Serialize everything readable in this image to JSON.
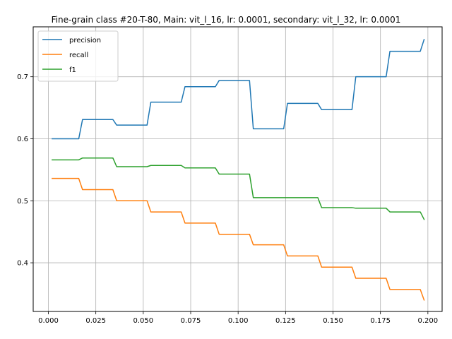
{
  "chart_data": {
    "type": "line",
    "title": "Fine-grain class #20-T-80, Main: vit_l_16, lr: 0.0001, secondary: vit_l_32, lr: 0.0001",
    "xlabel": "",
    "ylabel": "",
    "xlim": [
      -0.008,
      0.2075
    ],
    "ylim": [
      0.3215,
      0.7805
    ],
    "x_ticks": [
      0.0,
      0.025,
      0.05,
      0.075,
      0.1,
      0.125,
      0.15,
      0.175,
      0.2
    ],
    "x_tick_labels": [
      "0.000",
      "0.025",
      "0.050",
      "0.075",
      "0.100",
      "0.125",
      "0.150",
      "0.175",
      "0.200"
    ],
    "y_ticks": [
      0.4,
      0.5,
      0.6,
      0.7
    ],
    "y_tick_labels": [
      "0.4",
      "0.5",
      "0.6",
      "0.7"
    ],
    "grid": true,
    "legend_position": "upper-left",
    "series": [
      {
        "name": "precision",
        "color": "#1f77b4",
        "points": [
          [
            0.002,
            0.6
          ],
          [
            0.016,
            0.6
          ],
          [
            0.018,
            0.631
          ],
          [
            0.034,
            0.631
          ],
          [
            0.036,
            0.622
          ],
          [
            0.052,
            0.622
          ],
          [
            0.054,
            0.659
          ],
          [
            0.07,
            0.659
          ],
          [
            0.072,
            0.684
          ],
          [
            0.088,
            0.684
          ],
          [
            0.09,
            0.694
          ],
          [
            0.106,
            0.694
          ],
          [
            0.108,
            0.616
          ],
          [
            0.124,
            0.616
          ],
          [
            0.126,
            0.657
          ],
          [
            0.142,
            0.657
          ],
          [
            0.144,
            0.647
          ],
          [
            0.16,
            0.647
          ],
          [
            0.162,
            0.7
          ],
          [
            0.178,
            0.7
          ],
          [
            0.18,
            0.741
          ],
          [
            0.196,
            0.741
          ],
          [
            0.198,
            0.76
          ]
        ]
      },
      {
        "name": "recall",
        "color": "#ff7f0e",
        "points": [
          [
            0.002,
            0.536
          ],
          [
            0.016,
            0.536
          ],
          [
            0.018,
            0.518
          ],
          [
            0.034,
            0.518
          ],
          [
            0.036,
            0.5
          ],
          [
            0.052,
            0.5
          ],
          [
            0.054,
            0.482
          ],
          [
            0.07,
            0.482
          ],
          [
            0.072,
            0.464
          ],
          [
            0.088,
            0.464
          ],
          [
            0.09,
            0.446
          ],
          [
            0.106,
            0.446
          ],
          [
            0.108,
            0.429
          ],
          [
            0.124,
            0.429
          ],
          [
            0.126,
            0.411
          ],
          [
            0.142,
            0.411
          ],
          [
            0.144,
            0.393
          ],
          [
            0.16,
            0.393
          ],
          [
            0.162,
            0.375
          ],
          [
            0.178,
            0.375
          ],
          [
            0.18,
            0.357
          ],
          [
            0.196,
            0.357
          ],
          [
            0.198,
            0.34
          ]
        ]
      },
      {
        "name": "f1",
        "color": "#2ca02c",
        "points": [
          [
            0.002,
            0.566
          ],
          [
            0.016,
            0.566
          ],
          [
            0.018,
            0.569
          ],
          [
            0.034,
            0.569
          ],
          [
            0.036,
            0.555
          ],
          [
            0.052,
            0.555
          ],
          [
            0.054,
            0.557
          ],
          [
            0.07,
            0.557
          ],
          [
            0.072,
            0.553
          ],
          [
            0.088,
            0.553
          ],
          [
            0.09,
            0.543
          ],
          [
            0.106,
            0.543
          ],
          [
            0.108,
            0.505
          ],
          [
            0.124,
            0.505
          ],
          [
            0.126,
            0.505
          ],
          [
            0.142,
            0.505
          ],
          [
            0.144,
            0.489
          ],
          [
            0.16,
            0.489
          ],
          [
            0.162,
            0.488
          ],
          [
            0.178,
            0.488
          ],
          [
            0.18,
            0.482
          ],
          [
            0.196,
            0.482
          ],
          [
            0.198,
            0.47
          ]
        ]
      }
    ]
  }
}
